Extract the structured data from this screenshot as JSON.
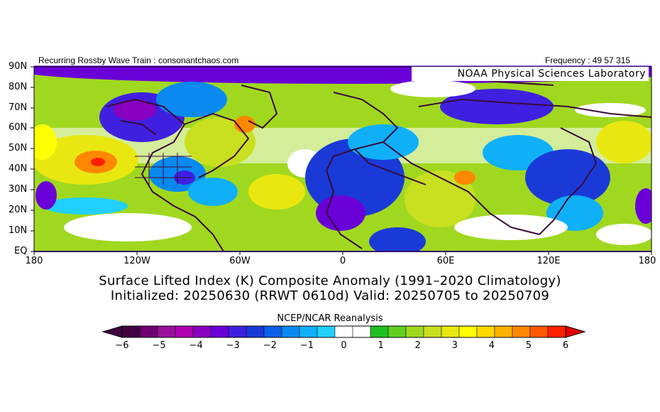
{
  "header": {
    "left": "Recurring Rossby Wave Train : consonantchaos.com",
    "right": "Frequency : 49 57 315"
  },
  "map_label": "NOAA Physical Sciences Laboratory",
  "lat_labels": [
    "90N",
    "80N",
    "70N",
    "60N",
    "50N",
    "40N",
    "30N",
    "20N",
    "10N",
    "EQ"
  ],
  "lon_labels": [
    "180",
    "120W",
    "60W",
    "0",
    "60E",
    "120E",
    "180"
  ],
  "title": {
    "line1": "Surface Lifted Index (K) Composite Anomaly (1991–2020 Climatology)",
    "line2": "Initialized: 20250630 (RRWT 0610d) Valid: 20250705 to 20250709"
  },
  "source": "NCEP/NCAR Reanalysis",
  "colorbar": {
    "ticks": [
      "−6",
      "−5",
      "−4",
      "−3",
      "−2",
      "−1",
      "0",
      "1",
      "2",
      "3",
      "4",
      "5",
      "6"
    ],
    "colors": [
      "#400040",
      "#700070",
      "#9a109a",
      "#b000b0",
      "#8a00c0",
      "#6a00d8",
      "#4020e0",
      "#1a3ad8",
      "#0a60e8",
      "#0a8af0",
      "#10b0f8",
      "#20d0ff",
      "#ffffff",
      "#ffffff",
      "#20c020",
      "#60d020",
      "#a0d820",
      "#c8e020",
      "#e8e810",
      "#ffff00",
      "#ffd800",
      "#ffb000",
      "#ff8800",
      "#ff5800",
      "#ff2000"
    ],
    "under_color": "#400040",
    "over_color": "#e00000"
  }
}
